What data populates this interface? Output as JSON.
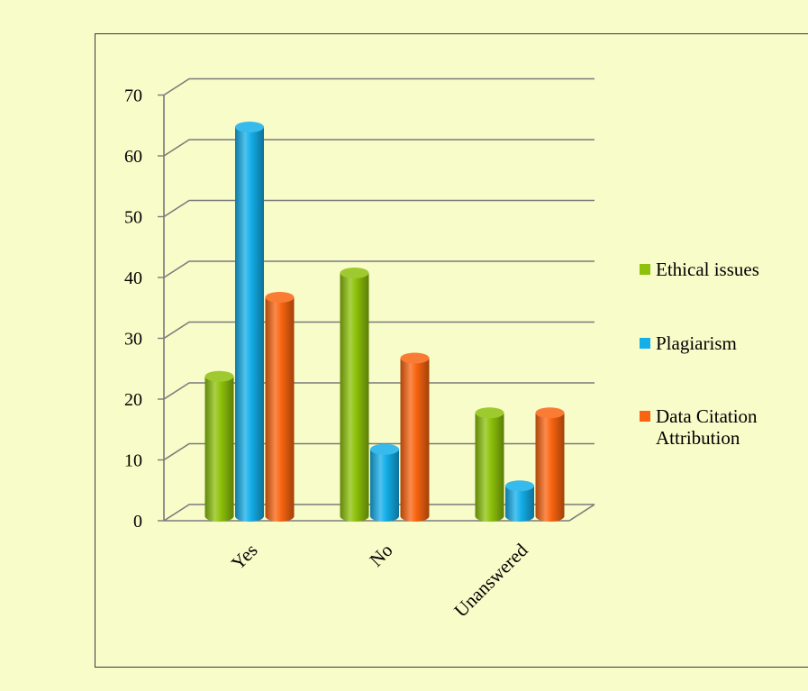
{
  "chart_data": {
    "type": "bar",
    "categories": [
      "Yes",
      "No",
      "Unanswered"
    ],
    "series": [
      {
        "name": "Ethical issues",
        "values": [
          23,
          40,
          17
        ],
        "color": "#8dc10a"
      },
      {
        "name": "Plagiarism",
        "values": [
          64,
          11,
          5
        ],
        "color": "#14aee9"
      },
      {
        "name": "Data Citation Attribution",
        "values": [
          36,
          26,
          17
        ],
        "color": "#f96410"
      }
    ],
    "yticks": [
      0,
      10,
      20,
      30,
      40,
      50,
      60,
      70
    ],
    "ylim": [
      0,
      70
    ],
    "legend_position": "right",
    "grid": true,
    "style": "3d-cylinder",
    "title": "",
    "xlabel": "",
    "ylabel": ""
  }
}
